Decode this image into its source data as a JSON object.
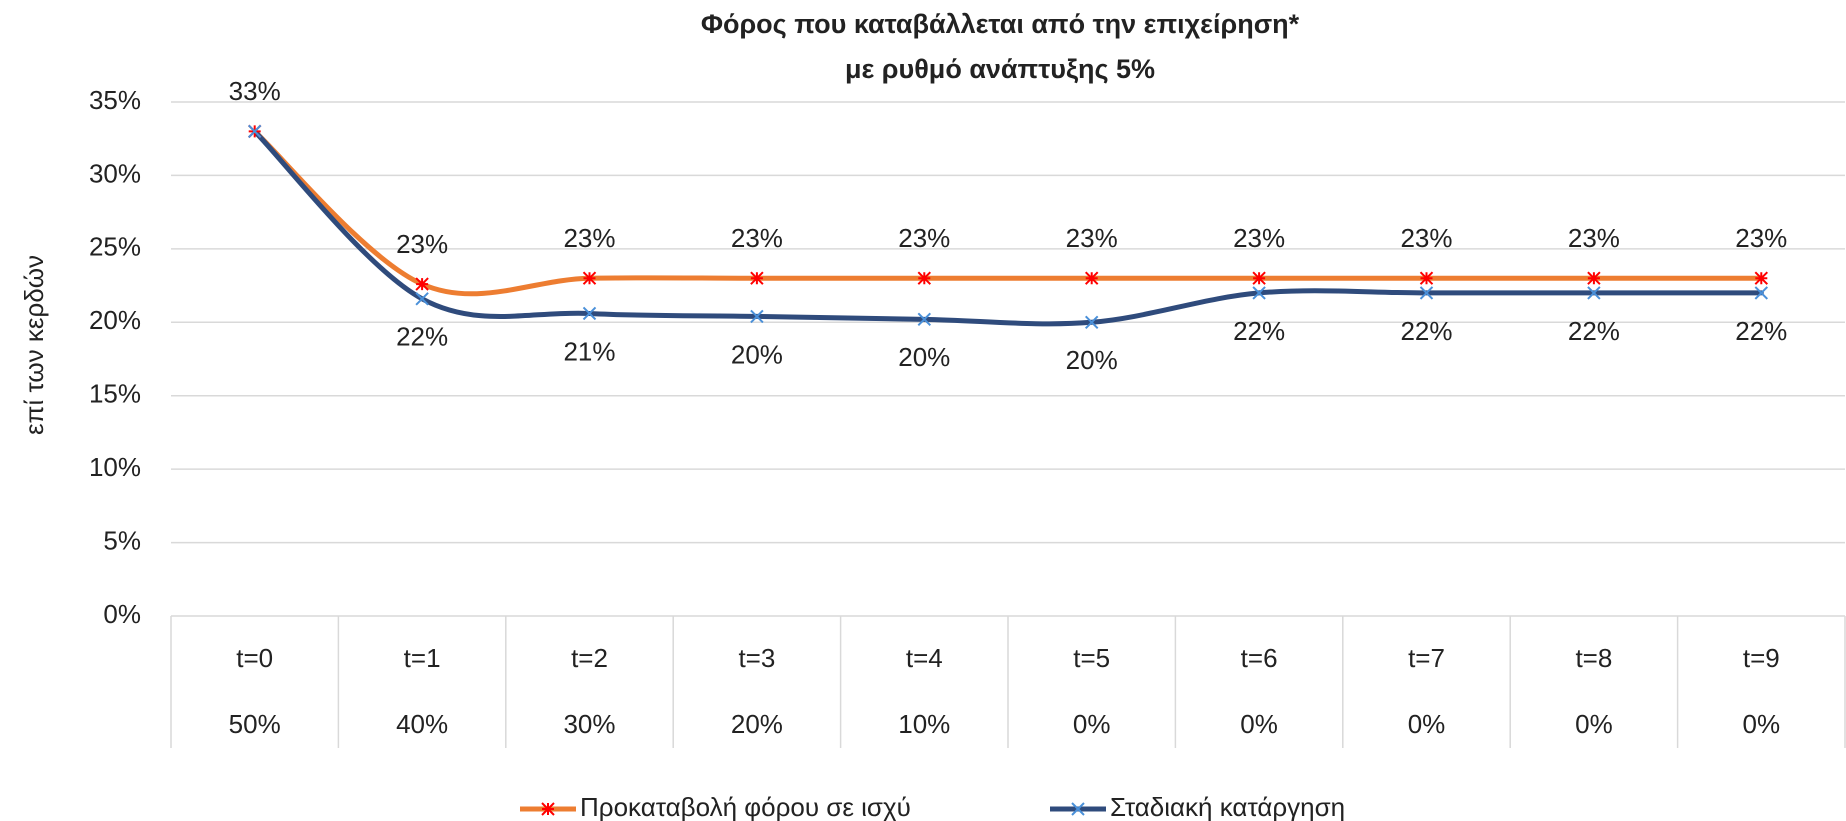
{
  "chart_data": {
    "type": "line",
    "title": "Φόρος που καταβάλλεται από την επιχείρηση*",
    "subtitle": "με ρυθμό ανάπτυξης 5%",
    "y_label": "επί των κερδών",
    "categories": [
      "t=0",
      "t=1",
      "t=2",
      "t=3",
      "t=4",
      "t=5",
      "t=6",
      "t=7",
      "t=8",
      "t=9"
    ],
    "sub_categories": [
      "50%",
      "40%",
      "30%",
      "20%",
      "10%",
      "0%",
      "0%",
      "0%",
      "0%",
      "0%"
    ],
    "series": [
      {
        "name": "Προκαταβολή φόρου σε ισχύ",
        "color": "#ed7d31",
        "marker_color": "#ff0000",
        "values": [
          33,
          22.6,
          23,
          23,
          23,
          23,
          23,
          23,
          23,
          23
        ],
        "value_labels": [
          "33%",
          "23%",
          "23%",
          "23%",
          "23%",
          "23%",
          "23%",
          "23%",
          "23%",
          "23%"
        ]
      },
      {
        "name": "Σταδιακή κατάργηση",
        "color": "#2f4b7c",
        "marker_color": "#4a90d9",
        "values": [
          33,
          21.6,
          20.6,
          20.4,
          20.2,
          20.0,
          22,
          22,
          22,
          22
        ],
        "value_labels": [
          null,
          "22%",
          "21%",
          "20%",
          "20%",
          "20%",
          "22%",
          "22%",
          "22%",
          "22%"
        ]
      }
    ],
    "ylim": [
      0,
      35
    ],
    "yticks": [
      {
        "value": 0,
        "label": "0%"
      },
      {
        "value": 5,
        "label": "5%"
      },
      {
        "value": 10,
        "label": "10%"
      },
      {
        "value": 15,
        "label": "15%"
      },
      {
        "value": 20,
        "label": "20%"
      },
      {
        "value": 25,
        "label": "25%"
      },
      {
        "value": 30,
        "label": "30%"
      },
      {
        "value": 35,
        "label": "35%"
      }
    ],
    "grid": true,
    "smooth": true,
    "legend": "bottom"
  }
}
